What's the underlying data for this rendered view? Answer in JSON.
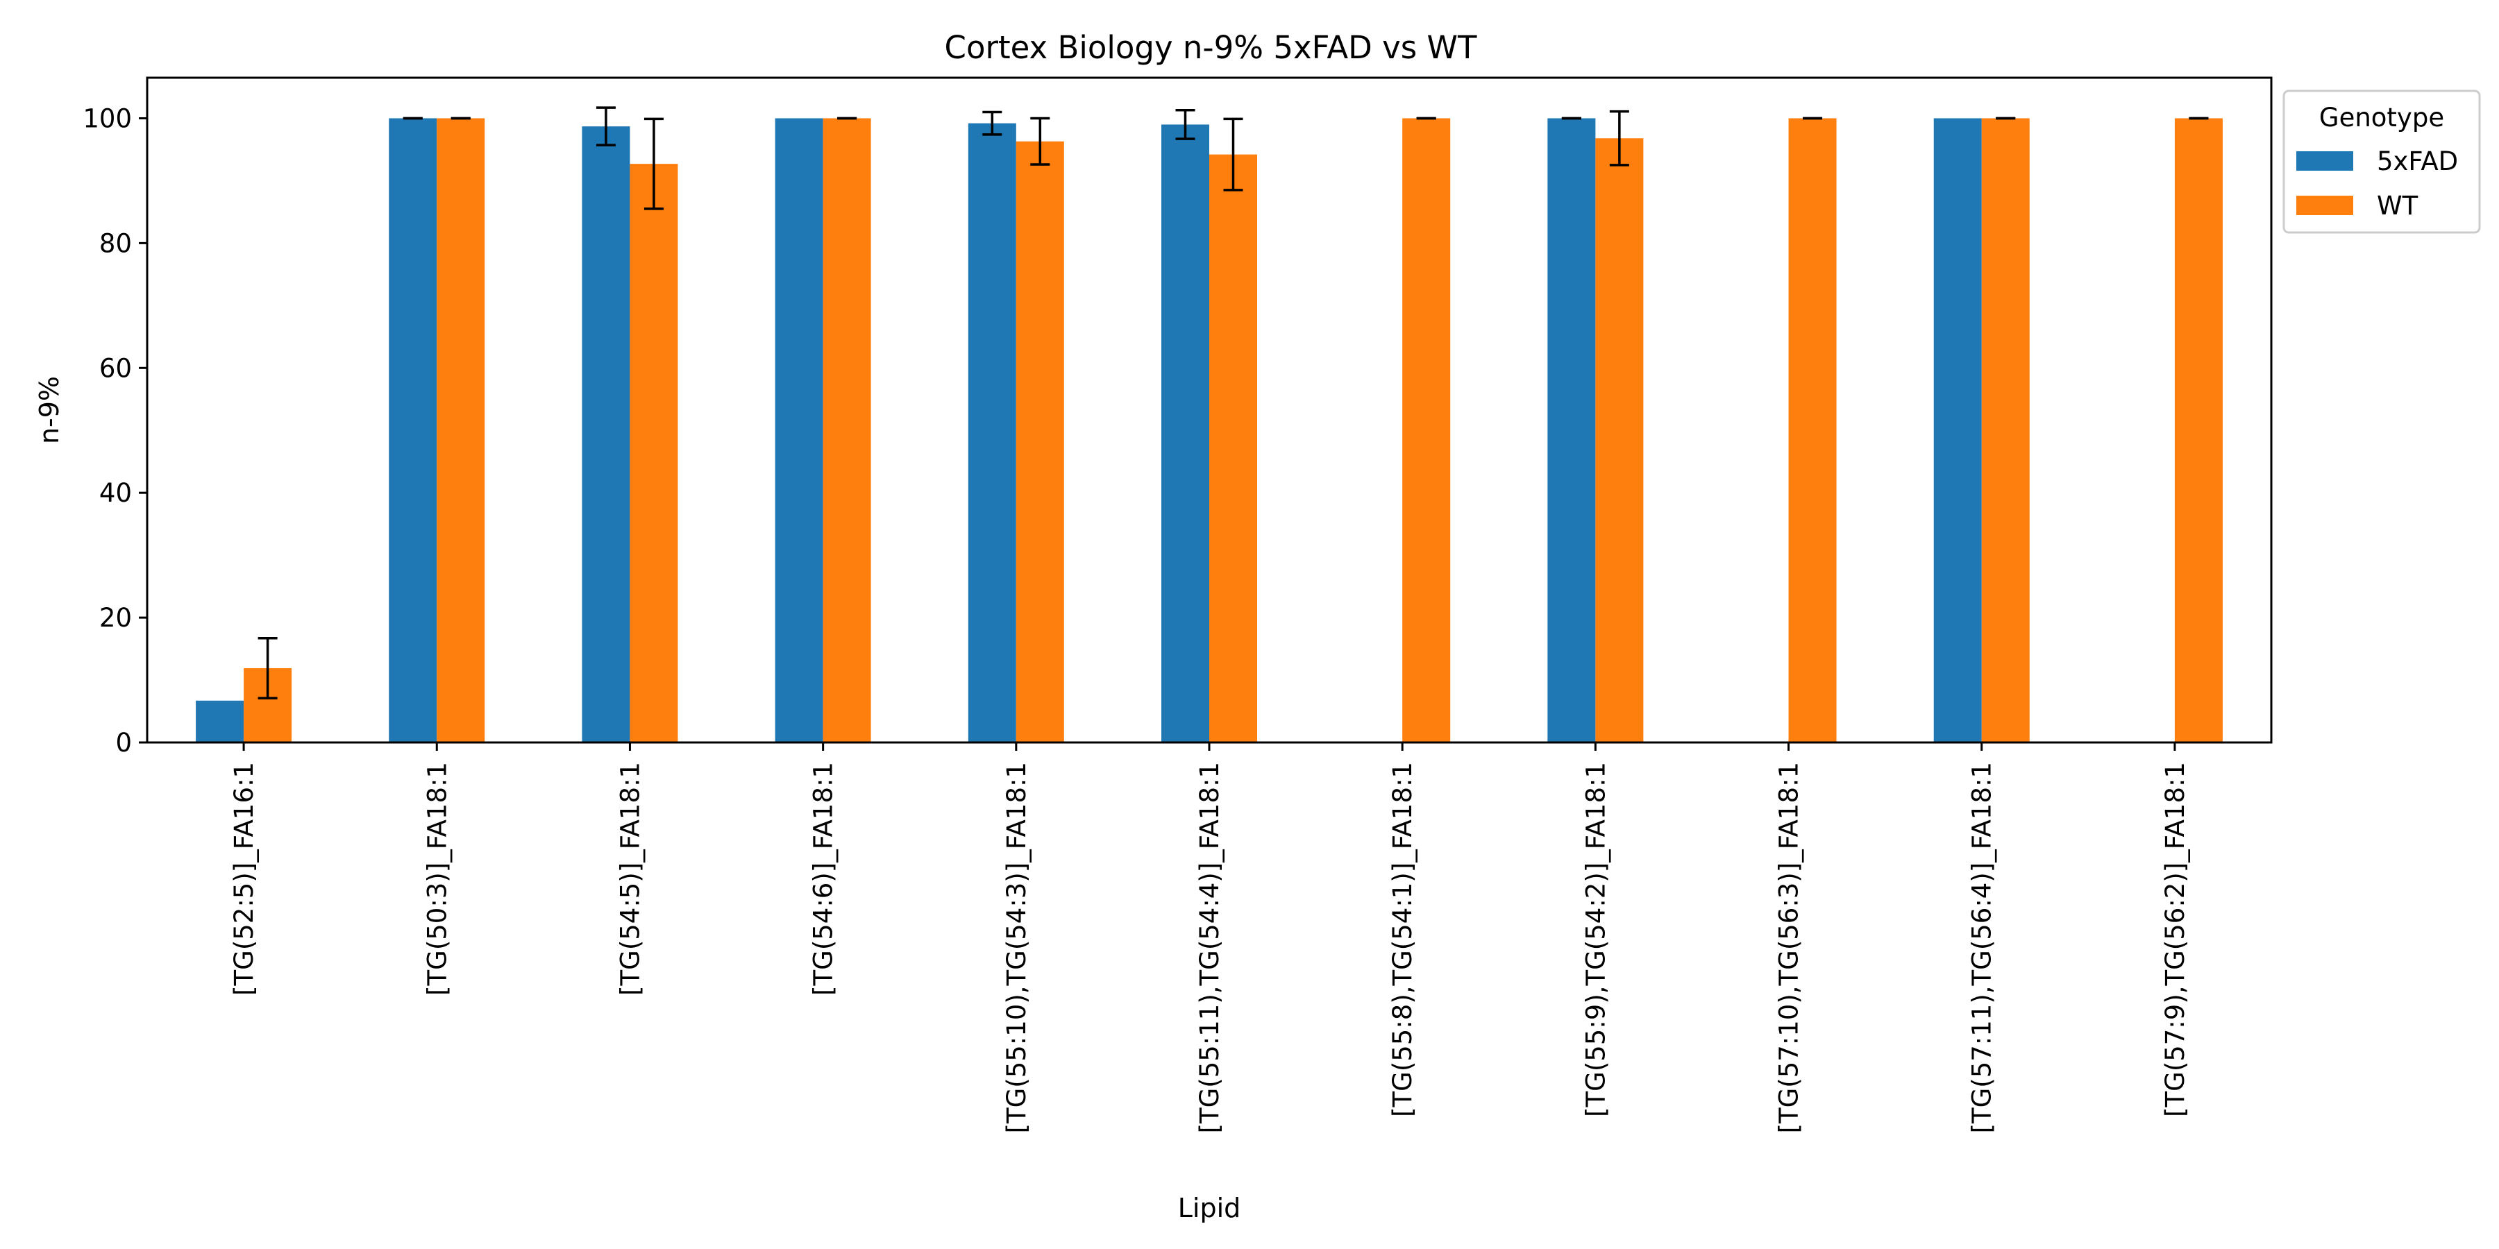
{
  "chart_data": {
    "type": "bar",
    "title": "Cortex Biology n-9% 5xFAD vs WT",
    "xlabel": "Lipid",
    "ylabel": "n-9%",
    "ylim": [
      0,
      106.5
    ],
    "yticks": [
      0,
      20,
      40,
      60,
      80,
      100
    ],
    "grid": false,
    "legend": {
      "title": "Genotype",
      "placement": "upper-right-outside"
    },
    "categories": [
      "[TG(52:5)]_FA16:1",
      "[TG(50:3)]_FA18:1",
      "[TG(54:5)]_FA18:1",
      "[TG(54:6)]_FA18:1",
      "[TG(55:10),TG(54:3)]_FA18:1",
      "[TG(55:11),TG(54:4)]_FA18:1",
      "[TG(55:8),TG(54:1)]_FA18:1",
      "[TG(55:9),TG(54:2)]_FA18:1",
      "[TG(57:10),TG(56:3)]_FA18:1",
      "[TG(57:11),TG(56:4)]_FA18:1",
      "[TG(57:9),TG(56:2)]_FA18:1"
    ],
    "series": [
      {
        "name": "5xFAD",
        "color": "#1f77b4",
        "values": [
          6.7,
          100,
          98.7,
          100,
          99.2,
          99.0,
          null,
          100,
          null,
          100,
          null
        ],
        "errors": [
          null,
          0,
          3.0,
          null,
          1.8,
          2.3,
          null,
          0,
          null,
          null,
          null
        ]
      },
      {
        "name": "WT",
        "color": "#ff7f0e",
        "values": [
          11.9,
          100,
          92.7,
          100,
          96.3,
          94.2,
          100,
          96.8,
          100,
          100,
          100
        ],
        "errors": [
          4.8,
          0,
          7.2,
          0,
          3.7,
          5.7,
          0,
          4.3,
          0,
          0,
          0
        ]
      }
    ]
  }
}
